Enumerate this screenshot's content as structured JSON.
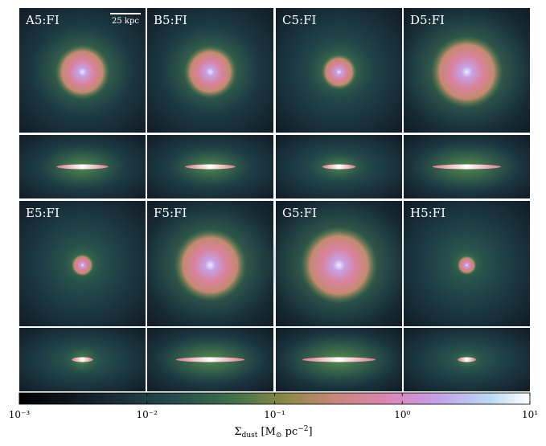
{
  "panels": [
    {
      "label": "A5:FI"
    },
    {
      "label": "B5:FI"
    },
    {
      "label": "C5:FI"
    },
    {
      "label": "D5:FI"
    },
    {
      "label": "E5:FI"
    },
    {
      "label": "F5:FI"
    },
    {
      "label": "G5:FI"
    },
    {
      "label": "H5:FI"
    }
  ],
  "scale_bar": {
    "label": "25 kpc"
  },
  "colorbar": {
    "lim": [
      0.001,
      10
    ],
    "log": true,
    "ticks": [
      {
        "value": 0.001,
        "label": "10⁻³"
      },
      {
        "value": 0.01,
        "label": "10⁻²"
      },
      {
        "value": 0.1,
        "label": "10⁻¹"
      },
      {
        "value": 1,
        "label": "10⁰"
      },
      {
        "value": 10,
        "label": "10¹"
      }
    ],
    "label": {
      "symbol": "Σ",
      "sub": "dust",
      "unit_open": " [M",
      "unit_sub": "⊙",
      "unit_mid": " pc",
      "unit_sup": "−2",
      "unit_close": "]"
    }
  }
}
